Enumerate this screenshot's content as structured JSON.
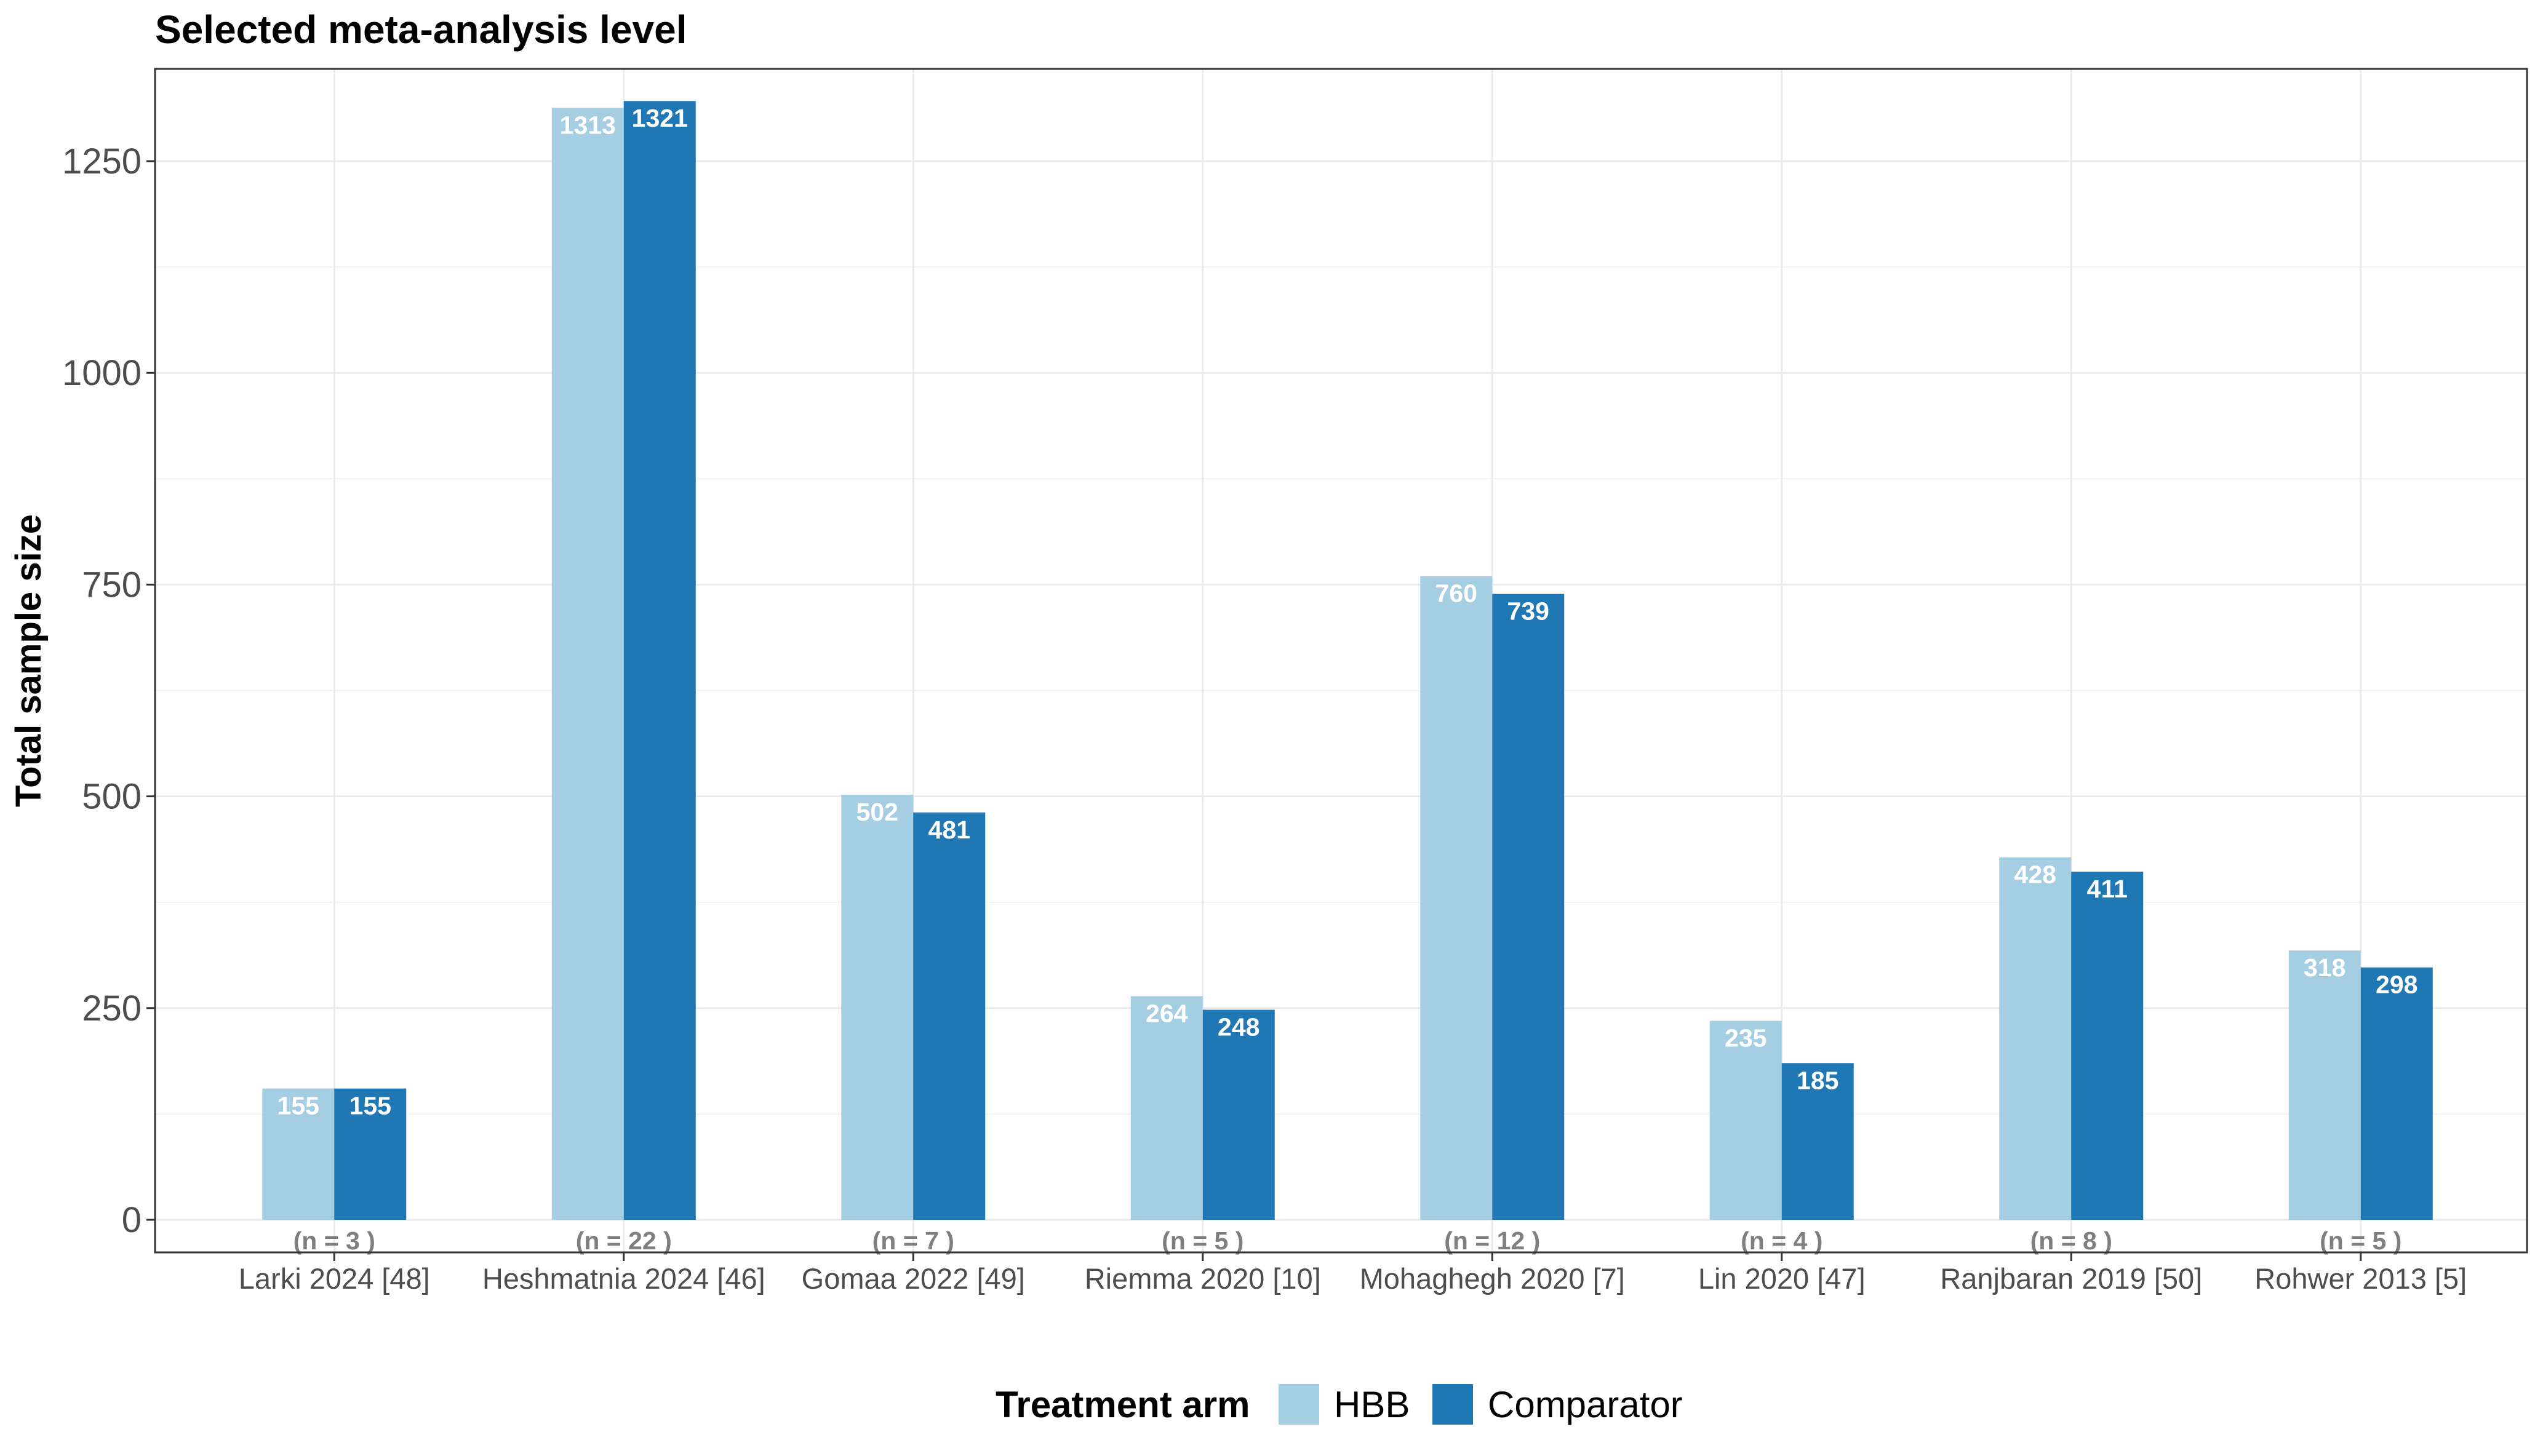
{
  "chart_data": {
    "type": "bar",
    "title": "Selected meta-analysis level",
    "xlabel": "",
    "ylabel": "Total sample size",
    "ylim": [
      0,
      1360
    ],
    "yticks": [
      0,
      250,
      500,
      750,
      1000,
      1250
    ],
    "categories": [
      "Larki 2024 [48]",
      "Heshmatnia 2024 [46]",
      "Gomaa 2022 [49]",
      "Riemma 2020 [10]",
      "Mohaghegh 2020 [7]",
      "Lin 2020 [47]",
      "Ranjbaran 2019 [50]",
      "Rohwer 2013 [5]"
    ],
    "n_labels": [
      "(n = 3 )",
      "(n = 22 )",
      "(n = 7 )",
      "(n = 5 )",
      "(n = 12 )",
      "(n = 4 )",
      "(n = 8 )",
      "(n = 5 )"
    ],
    "series": [
      {
        "name": "HBB",
        "color": "#a6cee3",
        "values": [
          155,
          1313,
          502,
          264,
          760,
          235,
          428,
          318
        ]
      },
      {
        "name": "Comparator",
        "color": "#1f78b4",
        "values": [
          155,
          1321,
          481,
          248,
          739,
          185,
          411,
          298
        ]
      }
    ],
    "legend": {
      "title": "Treatment arm",
      "position": "bottom"
    },
    "grid": true
  }
}
